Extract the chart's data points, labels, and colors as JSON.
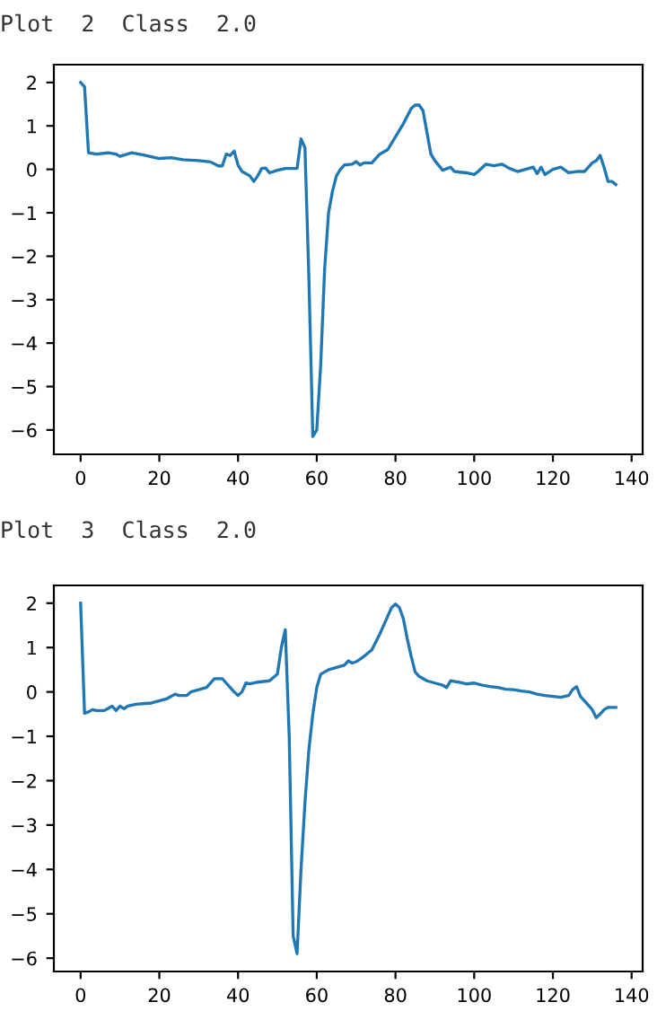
{
  "chart_data": [
    {
      "type": "line",
      "title": "Plot  2  Class  2.0",
      "color": "#1f77b4",
      "x": [
        0,
        1,
        2,
        4,
        7,
        9,
        10,
        13,
        16,
        20,
        23,
        26,
        30,
        33,
        35,
        36,
        37,
        38,
        39,
        40,
        41,
        43,
        44,
        45,
        46,
        47,
        48,
        50,
        52,
        55,
        56,
        57,
        58,
        59,
        60,
        61,
        62,
        63,
        64,
        65,
        66,
        67,
        69,
        70,
        71,
        72,
        74,
        76,
        78,
        80,
        82,
        84,
        85,
        86,
        87,
        88,
        89,
        90,
        92,
        94,
        95,
        98,
        100,
        101,
        103,
        105,
        107,
        109,
        111,
        113,
        115,
        116,
        117,
        118,
        120,
        122,
        124,
        126,
        128,
        130,
        131,
        132,
        133,
        134,
        135,
        136
      ],
      "values": [
        2.0,
        1.9,
        0.38,
        0.35,
        0.38,
        0.35,
        0.3,
        0.38,
        0.33,
        0.25,
        0.27,
        0.22,
        0.2,
        0.17,
        0.08,
        0.08,
        0.35,
        0.32,
        0.42,
        0.1,
        -0.05,
        -0.15,
        -0.28,
        -0.15,
        0.02,
        0.03,
        -0.08,
        -0.02,
        0.02,
        0.02,
        0.7,
        0.5,
        -2.5,
        -6.15,
        -6.0,
        -4.5,
        -2.3,
        -1.0,
        -0.5,
        -0.15,
        0.0,
        0.1,
        0.12,
        0.18,
        0.1,
        0.15,
        0.15,
        0.35,
        0.45,
        0.75,
        1.05,
        1.4,
        1.48,
        1.48,
        1.35,
        0.85,
        0.35,
        0.2,
        -0.02,
        0.05,
        -0.05,
        -0.08,
        -0.12,
        -0.05,
        0.12,
        0.08,
        0.12,
        0.02,
        -0.05,
        0.0,
        0.05,
        -0.1,
        0.05,
        -0.12,
        0.0,
        0.05,
        -0.08,
        -0.05,
        -0.05,
        0.15,
        0.2,
        0.32,
        0.05,
        -0.28,
        -0.28,
        -0.35
      ],
      "xlim": [
        -6.8,
        142.8
      ],
      "ylim": [
        -6.56,
        2.41
      ],
      "xticks": [
        0,
        20,
        40,
        60,
        80,
        100,
        120,
        140
      ],
      "yticks": [
        {
          "value": -6,
          "label": "−6"
        },
        {
          "value": -5,
          "label": "−5"
        },
        {
          "value": -4,
          "label": "−4"
        },
        {
          "value": -3,
          "label": "−3"
        },
        {
          "value": -2,
          "label": "−2"
        },
        {
          "value": -1,
          "label": "−1"
        },
        0,
        1,
        2
      ]
    },
    {
      "type": "line",
      "title": "Plot  3  Class  2.0",
      "color": "#1f77b4",
      "x": [
        0,
        1,
        2,
        3,
        4,
        6,
        8,
        9,
        10,
        11,
        12,
        14,
        18,
        22,
        24,
        25,
        27,
        28,
        30,
        32,
        34,
        36,
        37,
        39,
        40,
        41,
        42,
        43,
        45,
        48,
        50,
        51,
        52,
        53,
        54,
        55,
        56,
        57,
        58,
        59,
        60,
        61,
        63,
        65,
        67,
        68,
        69,
        70,
        72,
        74,
        76,
        78,
        79,
        80,
        81,
        82,
        83,
        84,
        85,
        86,
        88,
        90,
        92,
        93,
        94,
        96,
        98,
        100,
        102,
        104,
        106,
        108,
        110,
        112,
        114,
        116,
        118,
        120,
        122,
        124,
        125,
        126,
        127,
        129,
        130,
        131,
        132,
        133,
        134,
        136
      ],
      "values": [
        2.0,
        -0.48,
        -0.45,
        -0.4,
        -0.42,
        -0.42,
        -0.32,
        -0.42,
        -0.32,
        -0.38,
        -0.32,
        -0.28,
        -0.25,
        -0.15,
        -0.05,
        -0.08,
        -0.08,
        0.0,
        0.05,
        0.1,
        0.3,
        0.3,
        0.2,
        0.0,
        -0.08,
        0.0,
        0.2,
        0.18,
        0.22,
        0.25,
        0.4,
        1.0,
        1.4,
        -1.0,
        -5.5,
        -5.9,
        -4.0,
        -2.5,
        -1.3,
        -0.5,
        0.1,
        0.4,
        0.5,
        0.55,
        0.6,
        0.7,
        0.65,
        0.68,
        0.8,
        0.95,
        1.3,
        1.7,
        1.9,
        1.98,
        1.9,
        1.65,
        1.2,
        0.8,
        0.45,
        0.35,
        0.25,
        0.2,
        0.15,
        0.1,
        0.25,
        0.22,
        0.18,
        0.2,
        0.15,
        0.12,
        0.1,
        0.06,
        0.05,
        0.02,
        0.0,
        -0.05,
        -0.08,
        -0.1,
        -0.12,
        -0.08,
        0.05,
        0.12,
        -0.1,
        -0.3,
        -0.4,
        -0.58,
        -0.5,
        -0.4,
        -0.35,
        -0.35
      ],
      "xlim": [
        -6.8,
        142.8
      ],
      "ylim": [
        -6.3,
        2.4
      ],
      "xticks": [
        0,
        20,
        40,
        60,
        80,
        100,
        120,
        140
      ],
      "yticks": [
        {
          "value": -6,
          "label": "−6"
        },
        {
          "value": -5,
          "label": "−5"
        },
        {
          "value": -4,
          "label": "−4"
        },
        {
          "value": -3,
          "label": "−3"
        },
        {
          "value": -2,
          "label": "−2"
        },
        {
          "value": -1,
          "label": "−1"
        },
        0,
        1,
        2
      ]
    }
  ]
}
